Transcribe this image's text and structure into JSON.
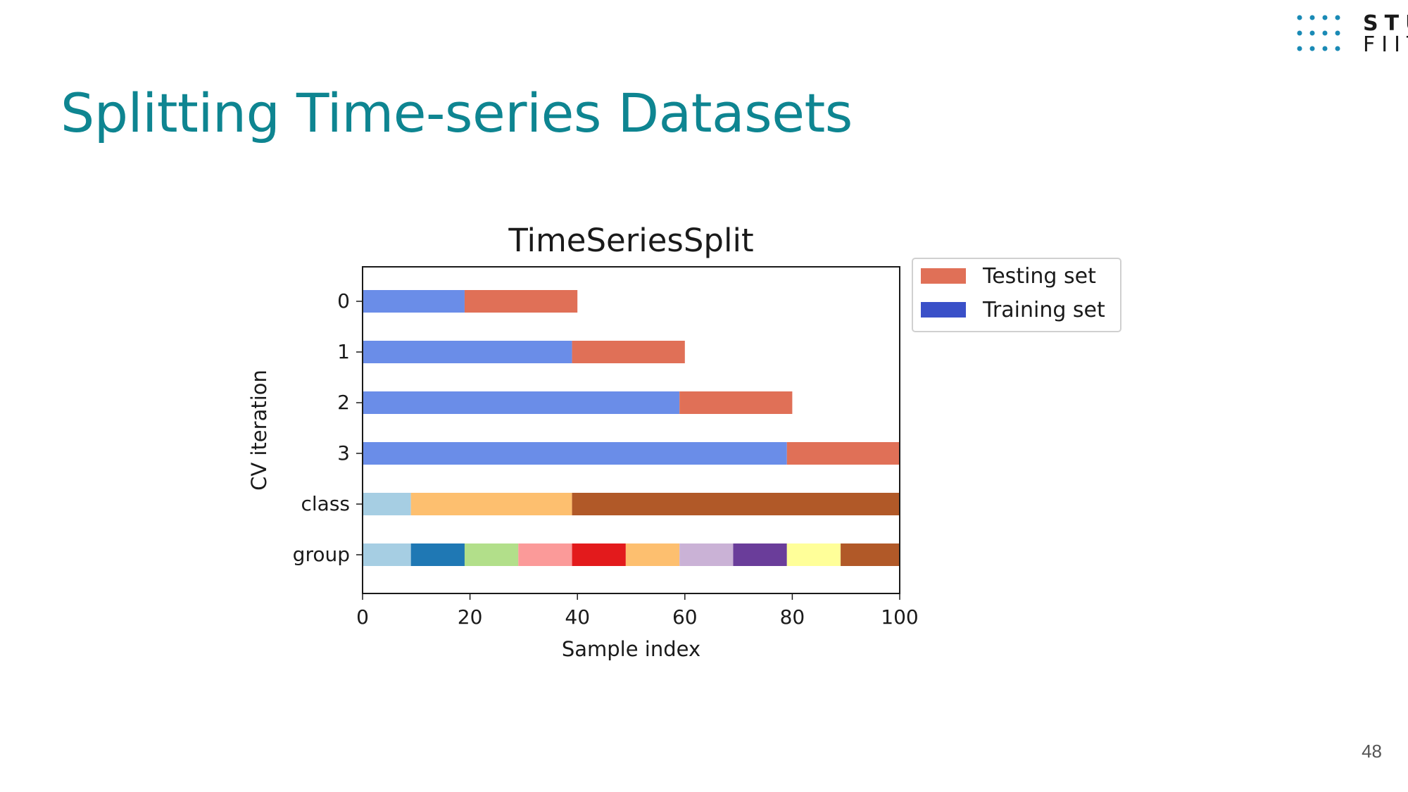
{
  "slide": {
    "title": "Splitting Time-series Datasets",
    "page_number": "48",
    "accent_color": "#0e8591"
  },
  "logo": {
    "line1": "STU",
    "line2": "FIIT",
    "dot_color": "#1a8ab5"
  },
  "chart_data": {
    "type": "bar",
    "orientation": "horizontal-stacked",
    "title": "TimeSeriesSplit",
    "xlabel": "Sample index",
    "ylabel": "CV iteration",
    "xlim": [
      0,
      100
    ],
    "xticks": [
      0,
      20,
      40,
      60,
      80,
      100
    ],
    "categories": [
      "0",
      "1",
      "2",
      "3",
      "class",
      "group"
    ],
    "rows": [
      {
        "label": "0",
        "segments": [
          {
            "start": 0,
            "end": 19,
            "color": "#6a8de8",
            "set": "Training set"
          },
          {
            "start": 19,
            "end": 40,
            "color": "#e07057",
            "set": "Testing set"
          }
        ]
      },
      {
        "label": "1",
        "segments": [
          {
            "start": 0,
            "end": 39,
            "color": "#6a8de8",
            "set": "Training set"
          },
          {
            "start": 39,
            "end": 60,
            "color": "#e07057",
            "set": "Testing set"
          }
        ]
      },
      {
        "label": "2",
        "segments": [
          {
            "start": 0,
            "end": 59,
            "color": "#6a8de8",
            "set": "Training set"
          },
          {
            "start": 59,
            "end": 80,
            "color": "#e07057",
            "set": "Testing set"
          }
        ]
      },
      {
        "label": "3",
        "segments": [
          {
            "start": 0,
            "end": 79,
            "color": "#6a8de8",
            "set": "Training set"
          },
          {
            "start": 79,
            "end": 100,
            "color": "#e07057",
            "set": "Testing set"
          }
        ]
      },
      {
        "label": "class",
        "segments": [
          {
            "start": 0,
            "end": 9,
            "color": "#a6cee3"
          },
          {
            "start": 9,
            "end": 39,
            "color": "#fdbf6f"
          },
          {
            "start": 39,
            "end": 100,
            "color": "#b15928"
          }
        ]
      },
      {
        "label": "group",
        "segments": [
          {
            "start": 0,
            "end": 9,
            "color": "#a6cee3"
          },
          {
            "start": 9,
            "end": 19,
            "color": "#1f78b4"
          },
          {
            "start": 19,
            "end": 29,
            "color": "#b2df8a"
          },
          {
            "start": 29,
            "end": 39,
            "color": "#fb9a99"
          },
          {
            "start": 39,
            "end": 49,
            "color": "#e31a1c"
          },
          {
            "start": 49,
            "end": 59,
            "color": "#fdbf6f"
          },
          {
            "start": 59,
            "end": 69,
            "color": "#cab2d6"
          },
          {
            "start": 69,
            "end": 79,
            "color": "#6a3d9a"
          },
          {
            "start": 79,
            "end": 89,
            "color": "#ffff99"
          },
          {
            "start": 89,
            "end": 100,
            "color": "#b15928"
          }
        ]
      }
    ],
    "legend": {
      "placement": "outside-upper-right",
      "entries": [
        {
          "name": "Testing set",
          "color": "#e07057"
        },
        {
          "name": "Training set",
          "color": "#3a50c8"
        }
      ]
    },
    "grid": false
  }
}
